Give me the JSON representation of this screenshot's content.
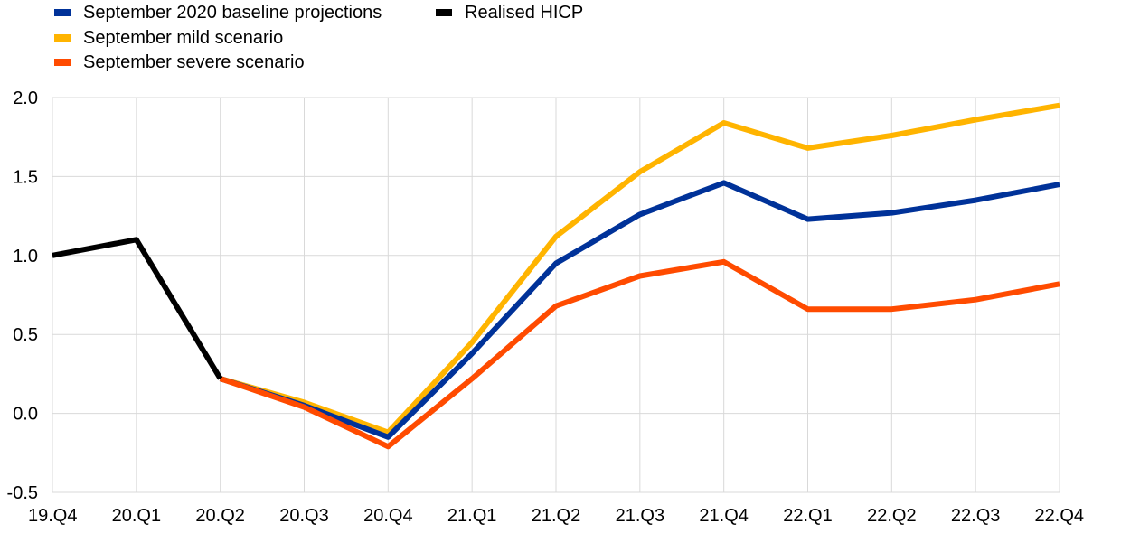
{
  "chart_data": {
    "type": "line",
    "title": "",
    "xlabel": "",
    "ylabel": "",
    "categories": [
      "19.Q4",
      "20.Q1",
      "20.Q2",
      "20.Q3",
      "20.Q4",
      "21.Q1",
      "21.Q2",
      "21.Q3",
      "21.Q4",
      "22.Q1",
      "22.Q2",
      "22.Q3",
      "22.Q4"
    ],
    "ylim": [
      -0.5,
      2.0
    ],
    "yticks": [
      "2.0",
      "1.5",
      "1.0",
      "0.5",
      "0.0",
      "-0.5"
    ],
    "ytick_values": [
      2.0,
      1.5,
      1.0,
      0.5,
      0.0,
      -0.5
    ],
    "grid": true,
    "legend_position": "top-left",
    "series": [
      {
        "name": "September 2020 baseline projections",
        "color": "#003299",
        "values": [
          null,
          null,
          0.22,
          0.05,
          -0.15,
          0.38,
          0.95,
          1.26,
          1.46,
          1.23,
          1.27,
          1.35,
          1.45
        ]
      },
      {
        "name": "September mild scenario",
        "color": "#FFB400",
        "values": [
          null,
          null,
          0.22,
          0.07,
          -0.12,
          0.45,
          1.12,
          1.53,
          1.84,
          1.68,
          1.76,
          1.86,
          1.95
        ]
      },
      {
        "name": "September severe scenario",
        "color": "#FF4B00",
        "values": [
          null,
          null,
          0.22,
          0.04,
          -0.21,
          0.22,
          0.68,
          0.87,
          0.96,
          0.66,
          0.66,
          0.72,
          0.82
        ]
      },
      {
        "name": "Realised HICP",
        "color": "#000000",
        "values": [
          1.0,
          1.1,
          0.22,
          null,
          null,
          null,
          null,
          null,
          null,
          null,
          null,
          null,
          null
        ]
      }
    ]
  }
}
